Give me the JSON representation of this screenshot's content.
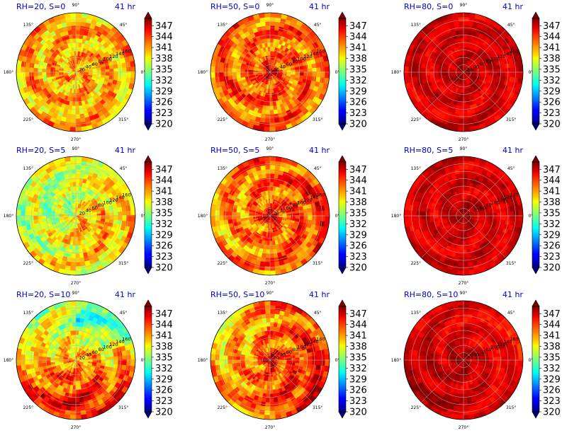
{
  "chart_data": {
    "type": "heatmap",
    "rows": 3,
    "cols": 3,
    "panels": [
      {
        "title": "RH=20, S=0",
        "time": "41 hr",
        "rh": 20,
        "s": 0
      },
      {
        "title": "RH=50, S=0",
        "time": "41 hr",
        "rh": 50,
        "s": 0
      },
      {
        "title": "RH=80, S=0",
        "time": "41 hr",
        "rh": 80,
        "s": 0
      },
      {
        "title": "RH=20, S=5",
        "time": "41 hr",
        "rh": 20,
        "s": 5
      },
      {
        "title": "RH=50, S=5",
        "time": "41 hr",
        "rh": 50,
        "s": 5
      },
      {
        "title": "RH=80, S=5",
        "time": "41 hr",
        "rh": 80,
        "s": 5
      },
      {
        "title": "RH=20, S=10",
        "time": "41 hr",
        "rh": 20,
        "s": 10
      },
      {
        "title": "RH=50, S=10",
        "time": "41 hr",
        "rh": 50,
        "s": 10
      },
      {
        "title": "RH=80, S=10",
        "time": "41 hr",
        "rh": 80,
        "s": 10
      }
    ],
    "angle_ticks": [
      "0°",
      "45°",
      "90°",
      "135°",
      "180°",
      "225°",
      "270°",
      "315°"
    ],
    "radial_ticks": [
      "20",
      "40",
      "60",
      "80",
      "100",
      "120",
      "140",
      "160"
    ],
    "colorbar": {
      "ticks": [
        "320",
        "323",
        "326",
        "329",
        "332",
        "335",
        "338",
        "341",
        "344",
        "347"
      ],
      "range": [
        320,
        349
      ],
      "colormap": "jet",
      "extend": "both"
    },
    "grid": true
  }
}
